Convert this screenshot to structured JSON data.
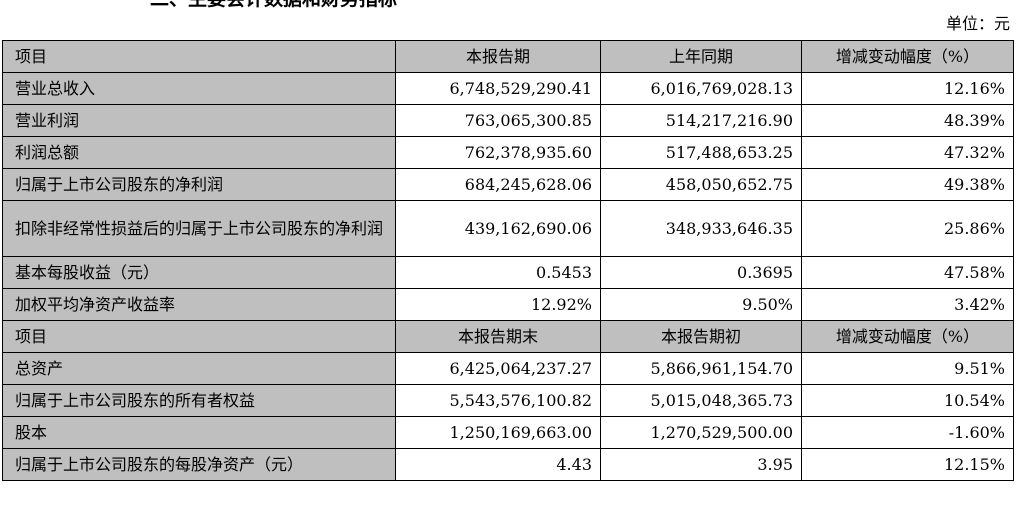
{
  "header": {
    "title_fragment": "二、主要会计数据和财务指标",
    "unit_label": "单位：元"
  },
  "section1": {
    "headers": [
      "项目",
      "本报告期",
      "上年同期",
      "增减变动幅度（%）"
    ],
    "rows": [
      {
        "label": "营业总收入",
        "current": "6,748,529,290.41",
        "prior": "6,016,769,028.13",
        "change": "12.16%"
      },
      {
        "label": "营业利润",
        "current": "763,065,300.85",
        "prior": "514,217,216.90",
        "change": "48.39%"
      },
      {
        "label": "利润总额",
        "current": "762,378,935.60",
        "prior": "517,488,653.25",
        "change": "47.32%"
      },
      {
        "label": "归属于上市公司股东的净利润",
        "current": "684,245,628.06",
        "prior": "458,050,652.75",
        "change": "49.38%"
      },
      {
        "label": "扣除非经常性损益后的归属于上市公司股东的净利润",
        "current": "439,162,690.06",
        "prior": "348,933,646.35",
        "change": "25.86%"
      },
      {
        "label": "基本每股收益（元）",
        "current": "0.5453",
        "prior": "0.3695",
        "change": "47.58%"
      },
      {
        "label": "加权平均净资产收益率",
        "current": "12.92%",
        "prior": "9.50%",
        "change": "3.42%"
      }
    ]
  },
  "section2": {
    "headers": [
      "项目",
      "本报告期末",
      "本报告期初",
      "增减变动幅度（%）"
    ],
    "rows": [
      {
        "label": "总资产",
        "current": "6,425,064,237.27",
        "prior": "5,866,961,154.70",
        "change": "9.51%"
      },
      {
        "label": "归属于上市公司股东的所有者权益",
        "current": "5,543,576,100.82",
        "prior": "5,015,048,365.73",
        "change": "10.54%"
      },
      {
        "label": "股本",
        "current": "1,250,169,663.00",
        "prior": "1,270,529,500.00",
        "change": "-1.60%"
      },
      {
        "label": "归属于上市公司股东的每股净资产（元）",
        "current": "4.43",
        "prior": "3.95",
        "change": "12.15%"
      }
    ]
  }
}
